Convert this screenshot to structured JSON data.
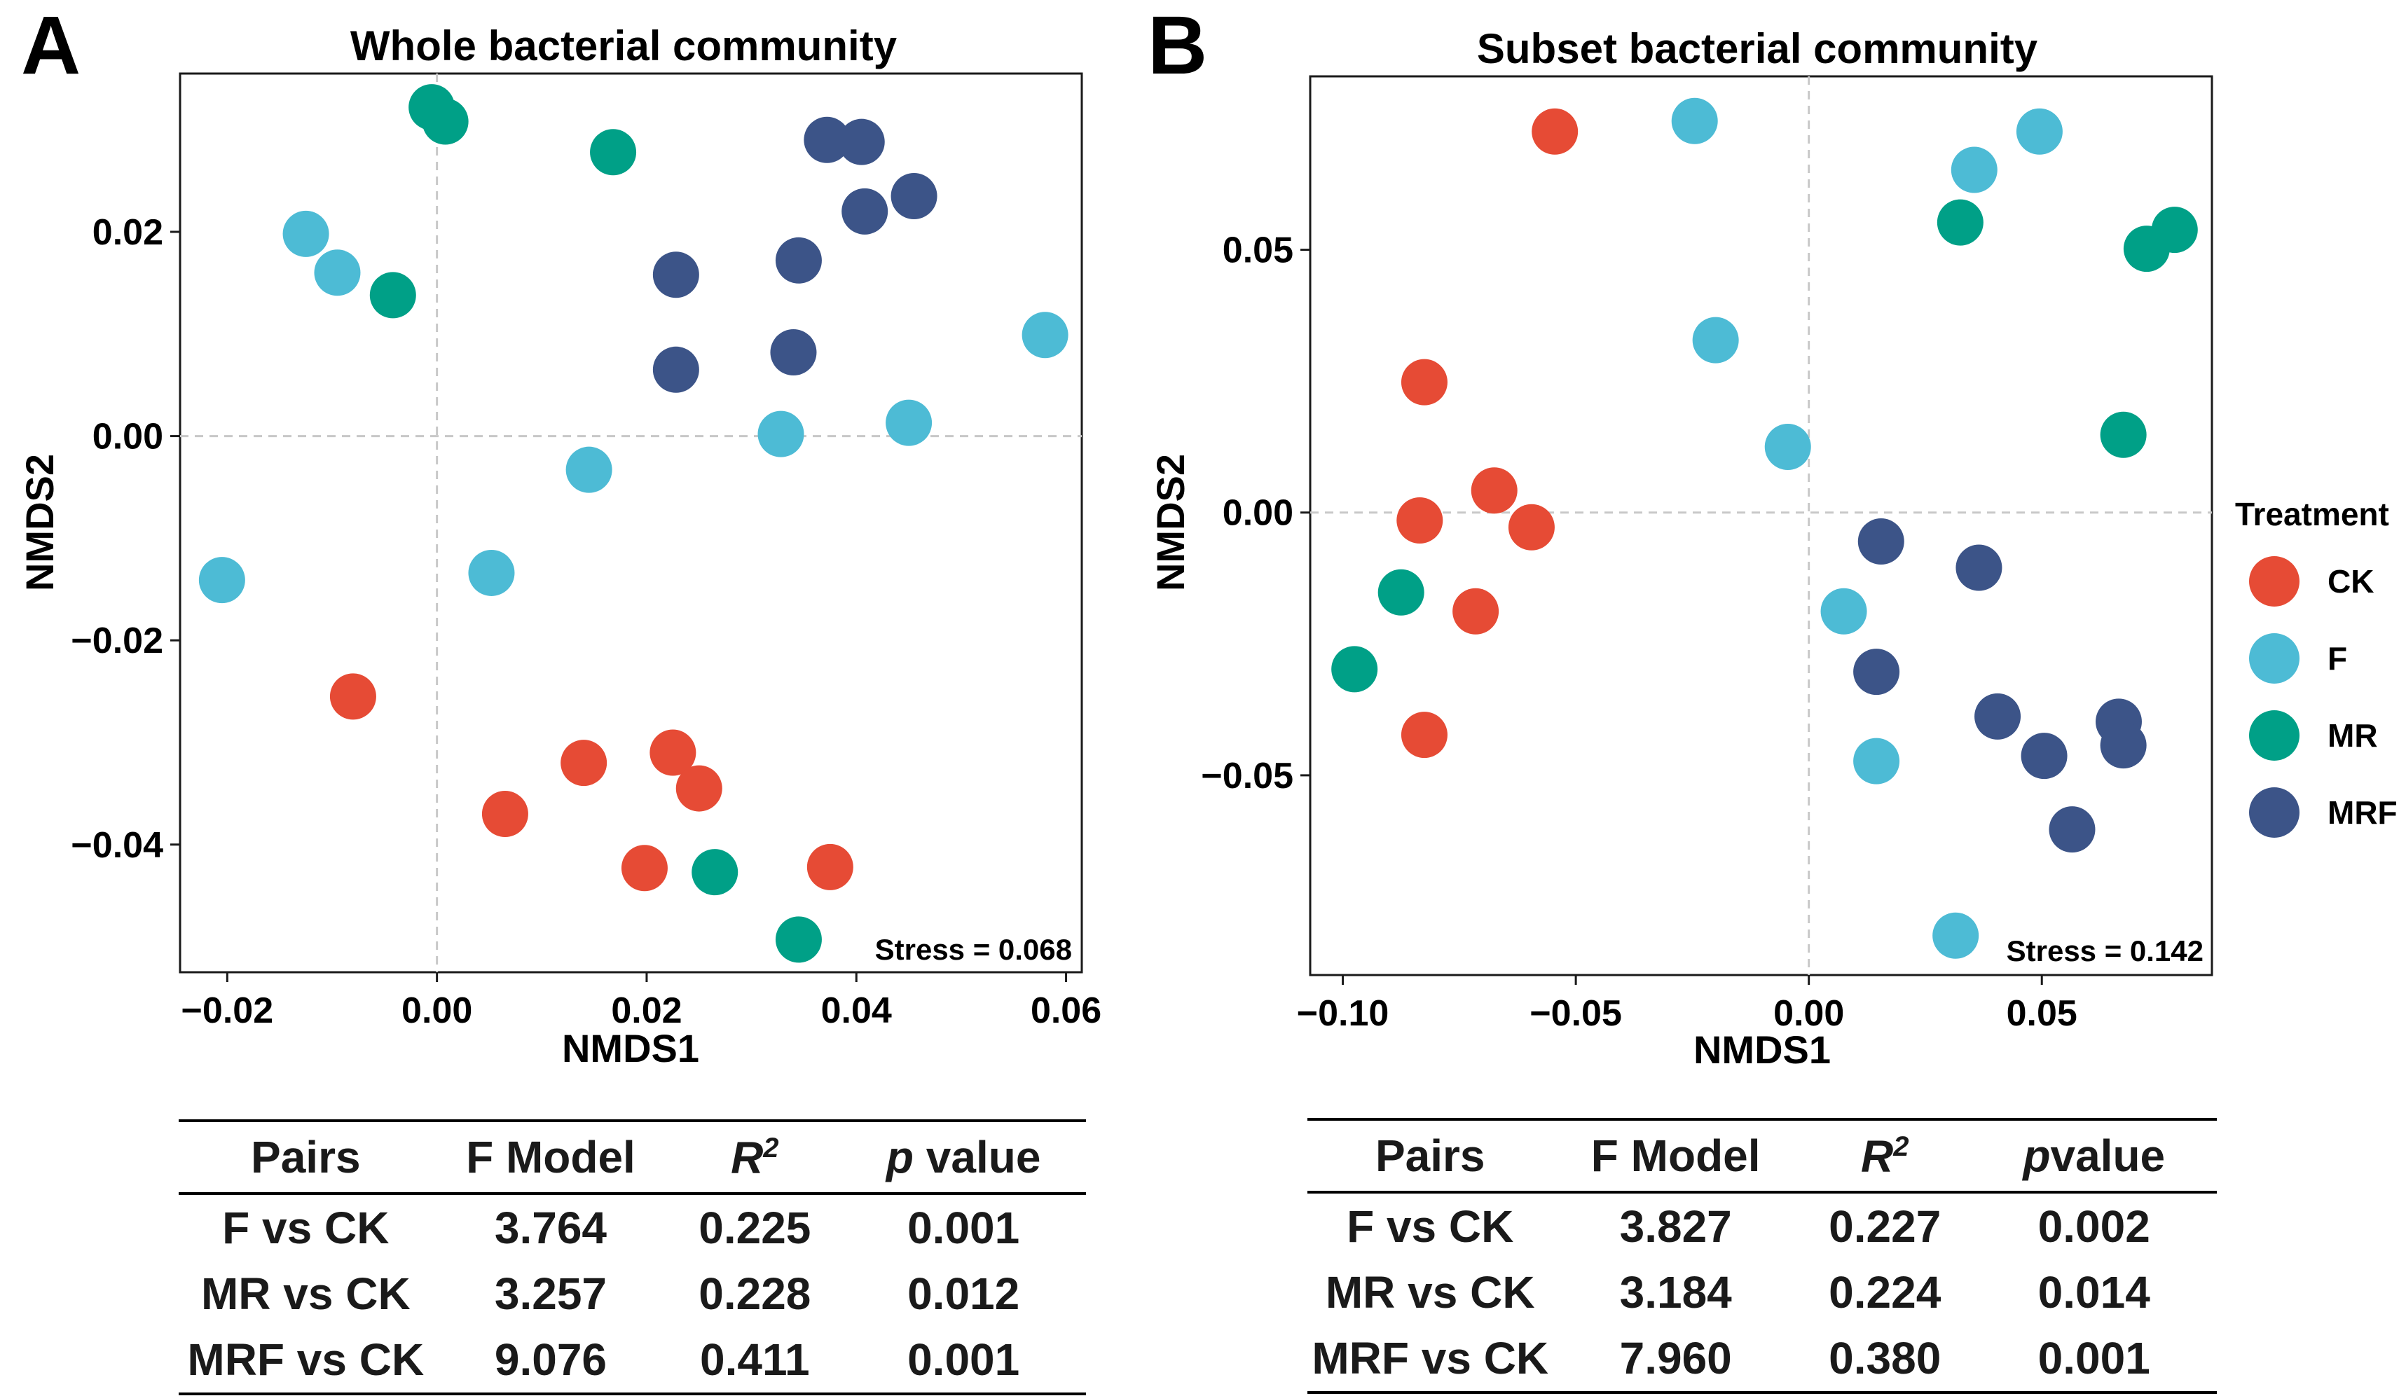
{
  "legend": {
    "title": "Treatment",
    "items": [
      {
        "label": "CK",
        "color": "#E64B35"
      },
      {
        "label": "F",
        "color": "#4DBBD5"
      },
      {
        "label": "MR",
        "color": "#00A087"
      },
      {
        "label": "MRF",
        "color": "#3C5488"
      }
    ]
  },
  "panels": {
    "A": {
      "letter": "A"
    },
    "B": {
      "letter": "B"
    }
  },
  "chart_data": [
    {
      "type": "scatter",
      "title": "Whole bacterial community",
      "xlabel": "NMDS1",
      "ylabel": "NMDS2",
      "xlim": [
        -0.0245,
        0.0615
      ],
      "ylim": [
        -0.0525,
        0.0355
      ],
      "xticks": [
        -0.02,
        0.0,
        0.02,
        0.04,
        0.06
      ],
      "xtick_labels": [
        "−0.02",
        "0.00",
        "0.02",
        "0.04",
        "0.06"
      ],
      "yticks": [
        -0.04,
        -0.02,
        0.0,
        0.02
      ],
      "ytick_labels": [
        "−0.04",
        "−0.02",
        "0.00",
        "0.02"
      ],
      "reference_lines": {
        "x": 0,
        "y": 0
      },
      "annotation": "Stress = 0.068",
      "series": [
        {
          "name": "CK",
          "x": [
            -0.008,
            0.014,
            0.0225,
            0.025,
            0.0065,
            0.0198,
            0.0375
          ],
          "y": [
            -0.0255,
            -0.032,
            -0.031,
            -0.0345,
            -0.037,
            -0.0423,
            -0.0422
          ]
        },
        {
          "name": "F",
          "x": [
            -0.0125,
            -0.0095,
            -0.0205,
            0.0145,
            0.0052,
            0.0328,
            0.045,
            0.058
          ],
          "y": [
            0.0198,
            0.016,
            -0.0141,
            -0.0033,
            -0.0134,
            0.0002,
            0.0013,
            0.0099
          ]
        },
        {
          "name": "MR",
          "x": [
            -0.0005,
            0.0008,
            0.0168,
            -0.0042,
            0.0265,
            0.0345
          ],
          "y": [
            0.0322,
            0.0308,
            0.0278,
            0.0138,
            -0.0427,
            -0.0493
          ]
        },
        {
          "name": "MRF",
          "x": [
            0.0372,
            0.0405,
            0.0408,
            0.0455,
            0.0228,
            0.0345,
            0.0228,
            0.034
          ],
          "y": [
            0.029,
            0.0288,
            0.022,
            0.0235,
            0.0158,
            0.0172,
            0.0065,
            0.0082
          ]
        }
      ]
    },
    {
      "type": "scatter",
      "title": "Subset bacterial community",
      "xlabel": "NMDS1",
      "ylabel": "NMDS2",
      "xlim": [
        -0.107,
        0.0865
      ],
      "ylim": [
        -0.088,
        0.083
      ],
      "xticks": [
        -0.1,
        -0.05,
        0.0,
        0.05
      ],
      "xtick_labels": [
        "−0.10",
        "−0.05",
        "0.00",
        "0.05"
      ],
      "yticks": [
        -0.05,
        0.0,
        0.05
      ],
      "ytick_labels": [
        "−0.05",
        "0.00",
        "0.05"
      ],
      "reference_lines": {
        "x": 0,
        "y": 0
      },
      "annotation": "Stress = 0.142",
      "series": [
        {
          "name": "CK",
          "x": [
            -0.0545,
            -0.0825,
            -0.0675,
            -0.0595,
            -0.0835,
            -0.0715,
            -0.0825
          ],
          "y": [
            0.0725,
            0.0248,
            0.0042,
            -0.0028,
            -0.0015,
            -0.0188,
            -0.0423
          ]
        },
        {
          "name": "F",
          "x": [
            -0.0245,
            -0.02,
            -0.0045,
            0.0495,
            0.0355,
            0.0075,
            0.0145,
            0.0315
          ],
          "y": [
            0.0745,
            0.0328,
            0.0125,
            0.0725,
            0.0652,
            -0.0188,
            -0.0473,
            -0.0805
          ]
        },
        {
          "name": "MR",
          "x": [
            0.0325,
            0.0725,
            0.0785,
            0.0675,
            -0.0875,
            -0.0975
          ],
          "y": [
            0.0552,
            0.0502,
            0.0538,
            0.0148,
            -0.0152,
            -0.0298
          ]
        },
        {
          "name": "MRF",
          "x": [
            0.0155,
            0.0365,
            0.0145,
            0.0405,
            0.0505,
            0.0665,
            0.0675,
            0.0565
          ],
          "y": [
            -0.0055,
            -0.0105,
            -0.0303,
            -0.0388,
            -0.0463,
            -0.0398,
            -0.0443,
            -0.0603
          ]
        }
      ]
    }
  ],
  "tables": {
    "A": {
      "headers": {
        "pairs": "Pairs",
        "fmodel": "F Model",
        "r2_base": "R",
        "r2_exp": "2",
        "p_italic": "p",
        "p_rest": " value"
      },
      "rows": [
        {
          "pairs": "F vs CK",
          "fmodel": "3.764",
          "r2": "0.225",
          "p": "0.001"
        },
        {
          "pairs": "MR vs CK",
          "fmodel": "3.257",
          "r2": "0.228",
          "p": "0.012"
        },
        {
          "pairs": "MRF vs CK",
          "fmodel": "9.076",
          "r2": "0.411",
          "p": "0.001"
        }
      ]
    },
    "B": {
      "headers": {
        "pairs": "Pairs",
        "fmodel": "F Model",
        "r2_base": "R",
        "r2_exp": "2",
        "p_italic": "p",
        "p_rest": "value"
      },
      "rows": [
        {
          "pairs": "F vs CK",
          "fmodel": "3.827",
          "r2": "0.227",
          "p": "0.002"
        },
        {
          "pairs": "MR vs CK",
          "fmodel": "3.184",
          "r2": "0.224",
          "p": "0.014"
        },
        {
          "pairs": "MRF vs CK",
          "fmodel": "7.960",
          "r2": "0.380",
          "p": "0.001"
        }
      ]
    }
  }
}
